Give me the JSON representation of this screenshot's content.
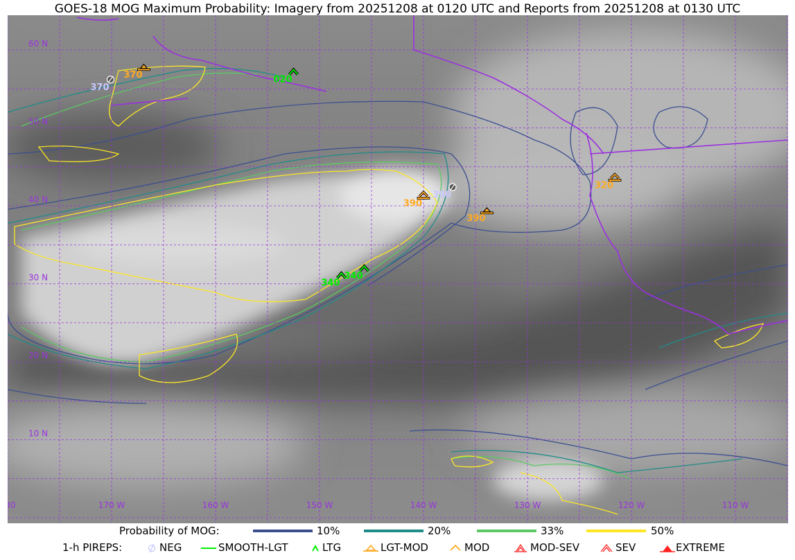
{
  "title": "GOES-18 MOG Maximum Probability: Imagery from 20251208 at 0120 UTC and Reports from 20251208 at 0130 UTC",
  "map": {
    "grid_color": "#9933dd",
    "coast_color": "#9b30e0",
    "lat_labels": [
      {
        "lat": 60,
        "text": "60 N"
      },
      {
        "lat": 50,
        "text": "50 N"
      },
      {
        "lat": 40,
        "text": "40 N"
      },
      {
        "lat": 30,
        "text": "30 N"
      },
      {
        "lat": 20,
        "text": "20 N"
      },
      {
        "lat": 10,
        "text": "10 N"
      }
    ],
    "lon_labels": [
      {
        "lon_w": 180,
        "text": "180"
      },
      {
        "lon_w": 170,
        "text": "170 W"
      },
      {
        "lon_w": 160,
        "text": "160 W"
      },
      {
        "lon_w": 150,
        "text": "150 W"
      },
      {
        "lon_w": 140,
        "text": "140 W"
      },
      {
        "lon_w": 130,
        "text": "130 W"
      },
      {
        "lon_w": 120,
        "text": "120 W"
      },
      {
        "lon_w": 110,
        "text": "110 W"
      }
    ],
    "pireps": [
      {
        "type": "NEG",
        "alt": "370",
        "lat": 56.2,
        "lon_w": 170.1
      },
      {
        "type": "LGT-MOD",
        "alt": "370",
        "lat": 57.8,
        "lon_w": 166.9
      },
      {
        "type": "LTG",
        "alt": "020",
        "lat": 57.2,
        "lon_w": 152.5
      },
      {
        "type": "LTG",
        "alt": "340",
        "lat": 31.1,
        "lon_w": 147.9
      },
      {
        "type": "LTG",
        "alt": "340",
        "lat": 32.0,
        "lon_w": 145.7
      },
      {
        "type": "MOD",
        "alt": "390",
        "lat": 41.3,
        "lon_w": 140.0
      },
      {
        "type": "NEG",
        "alt": "390",
        "lat": 42.4,
        "lon_w": 137.2
      },
      {
        "type": "LGT-MOD",
        "alt": "390",
        "lat": 39.4,
        "lon_w": 133.9
      },
      {
        "type": "MOD",
        "alt": "320",
        "lat": 43.6,
        "lon_w": 121.6
      }
    ]
  },
  "legend": {
    "prob_label": "Probability of MOG:",
    "prob_levels": [
      {
        "label": "10%",
        "color": "#3b4f8f"
      },
      {
        "label": "20%",
        "color": "#1f8c88"
      },
      {
        "label": "33%",
        "color": "#5cc863"
      },
      {
        "label": "50%",
        "color": "#fde725"
      }
    ],
    "pirep_label": "1-h PIREPS:",
    "pirep_types": [
      {
        "label": "NEG",
        "color": "#c8c8ff",
        "icon": "neg-circle-slash-icon"
      },
      {
        "label": "SMOOTH-LGT",
        "color": "#00ee00",
        "icon": "smooth-line-icon"
      },
      {
        "label": "LTG",
        "color": "#00ee00",
        "icon": "ltg-caret-icon"
      },
      {
        "label": "LGT-MOD",
        "color": "#ffaa22",
        "icon": "lgt-mod-triangle-icon"
      },
      {
        "label": "MOD",
        "color": "#ffaa22",
        "icon": "mod-caret-icon"
      },
      {
        "label": "MOD-SEV",
        "color": "#ff3030",
        "icon": "mod-sev-icon"
      },
      {
        "label": "SEV",
        "color": "#ff3030",
        "icon": "sev-icon"
      },
      {
        "label": "EXTREME",
        "color": "#ff2020",
        "icon": "extreme-icon"
      }
    ]
  }
}
